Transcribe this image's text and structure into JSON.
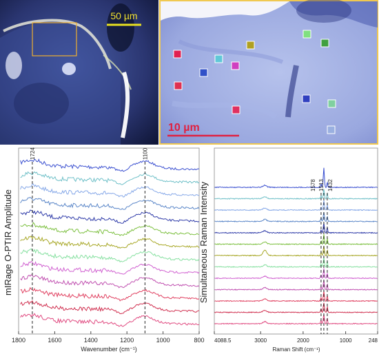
{
  "images": {
    "left": {
      "scalebar_label": "50 µm"
    },
    "right": {
      "scalebar_label": "10 µm",
      "markers": [
        {
          "color": "#e02050"
        },
        {
          "color": "#3050c8"
        },
        {
          "color": "#60c8d8"
        },
        {
          "color": "#d040c0"
        },
        {
          "color": "#b0a020"
        },
        {
          "color": "#80e080"
        },
        {
          "color": "#40a040"
        },
        {
          "color": "#e03050"
        },
        {
          "color": "#e03060"
        },
        {
          "color": "#3040c0"
        },
        {
          "color": "#80d0a0"
        },
        {
          "color": "#9ab0e0"
        }
      ]
    }
  },
  "chart_data": [
    {
      "type": "line",
      "ylabel": "mIRage O-PTIR Amplitude",
      "xlabel": "Wavenumber (cm⁻¹)",
      "xlim": [
        1800,
        800
      ],
      "x_ticks": [
        "1800",
        "1600",
        "1400",
        "1200",
        "1000",
        "800"
      ],
      "annotations": [
        {
          "x": 1724,
          "label": "1724"
        },
        {
          "x": 1100,
          "label": "1100"
        }
      ],
      "series_colors": [
        "#3a4fd0",
        "#6fc0c8",
        "#86a8e8",
        "#5a86c8",
        "#2e3aa8",
        "#7dc040",
        "#a8a828",
        "#86e0a0",
        "#d060d0",
        "#c050b0",
        "#e04060",
        "#d03050",
        "#e04a80"
      ]
    },
    {
      "type": "line",
      "ylabel": "Simultaneous Raman Intensity",
      "xlabel": "Raman Shift (cm⁻¹)",
      "xlim": [
        4088.5,
        248
      ],
      "x_ticks": [
        "4088.5",
        "3000",
        "2000",
        "1000",
        "248"
      ],
      "annotations": [
        {
          "x": 1578,
          "label": "1578"
        },
        {
          "x": 1513,
          "label": "1513"
        },
        {
          "x": 1432,
          "label": "1432"
        }
      ],
      "series_colors": [
        "#3a4fd0",
        "#6fc0c8",
        "#86a8e8",
        "#5a86c8",
        "#2e3aa8",
        "#7dc040",
        "#a8a828",
        "#86e0a0",
        "#d060d0",
        "#c050b0",
        "#e04060",
        "#d03050",
        "#e04a80"
      ]
    }
  ]
}
